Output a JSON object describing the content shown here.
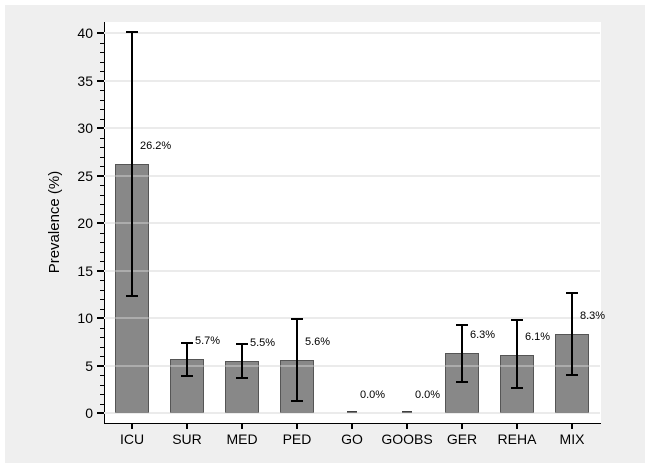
{
  "chart_data": {
    "type": "bar",
    "title": "",
    "xlabel": "",
    "ylabel": "Prevalence (%)",
    "ylim": [
      0,
      40
    ],
    "grid": true,
    "legend": "none",
    "y_major_ticks": [
      0,
      5,
      10,
      15,
      20,
      25,
      30,
      35,
      40
    ],
    "y_major_tick_labels": [
      "0",
      "5",
      "10",
      "15",
      "20",
      "25",
      "30",
      "35",
      "40"
    ],
    "y_minor_tick_step": 1,
    "categories": [
      "ICU",
      "SUR",
      "MED",
      "PED",
      "GO",
      "GOOBS",
      "GER",
      "REHA",
      "MIX"
    ],
    "values": [
      26.2,
      5.7,
      5.5,
      5.6,
      0.0,
      0.0,
      6.3,
      6.1,
      8.3
    ],
    "value_labels": [
      "26.2%",
      "5.7%",
      "5.5%",
      "5.6%",
      "0.0%",
      "0.0%",
      "6.3%",
      "6.1%",
      "8.3%"
    ],
    "error_low": [
      12.3,
      3.9,
      3.7,
      1.3,
      null,
      null,
      3.3,
      2.6,
      4.0
    ],
    "error_high": [
      40.1,
      7.4,
      7.3,
      9.9,
      null,
      null,
      9.3,
      9.8,
      12.6
    ],
    "colors": {
      "bar_fill": "#888888",
      "bar_border": "#555555",
      "zero_dash": "#3f3f3f",
      "grid": "#e2e2e2",
      "axis": "#000000",
      "plot_background": "#ffffff",
      "outer_background": "#efefef",
      "frame_background": "#ffffff"
    }
  }
}
